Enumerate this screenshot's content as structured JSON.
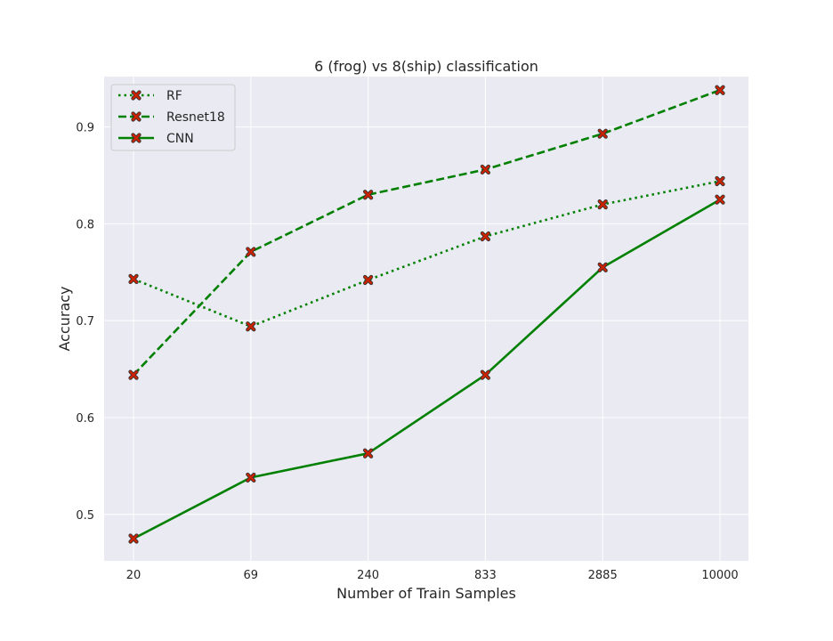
{
  "chart_data": {
    "type": "line",
    "title": "6 (frog) vs 8(ship) classification",
    "xlabel": "Number of Train Samples",
    "ylabel": "Accuracy",
    "categories": [
      "20",
      "69",
      "240",
      "833",
      "2885",
      "10000"
    ],
    "ylim": [
      0.452,
      0.952
    ],
    "yticks": [
      0.5,
      0.6,
      0.7,
      0.8,
      0.9
    ],
    "grid": true,
    "background": "#eaeaf2",
    "legend_position": "top-left",
    "series": [
      {
        "name": "RF",
        "style": "dotted",
        "color": "#008000",
        "marker": "x",
        "marker_color": "#cc2200",
        "values": [
          0.743,
          0.694,
          0.742,
          0.787,
          0.82,
          0.844
        ]
      },
      {
        "name": "Resnet18",
        "style": "dashed",
        "color": "#008000",
        "marker": "x",
        "marker_color": "#cc2200",
        "values": [
          0.644,
          0.771,
          0.83,
          0.856,
          0.893,
          0.938
        ]
      },
      {
        "name": "CNN",
        "style": "solid",
        "color": "#008000",
        "marker": "x",
        "marker_color": "#cc2200",
        "values": [
          0.475,
          0.538,
          0.563,
          0.644,
          0.755,
          0.825
        ]
      }
    ]
  }
}
